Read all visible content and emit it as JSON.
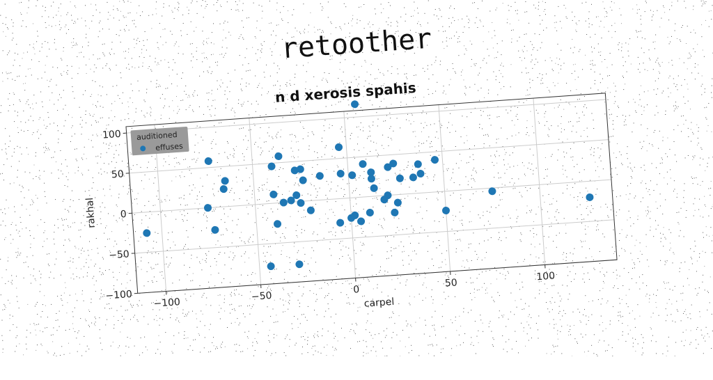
{
  "page": {
    "title": "retoother",
    "background": "#ffffff"
  },
  "chart_data": {
    "type": "scatter",
    "title": "n d xerosis spahis",
    "xlabel": "carpel",
    "ylabel": "rakhal",
    "xlim": [
      -115,
      138
    ],
    "ylim": [
      -100,
      108
    ],
    "xticks": [
      -100,
      -50,
      0,
      50,
      100
    ],
    "yticks": [
      -100,
      -50,
      0,
      50,
      100
    ],
    "xtick_labels": [
      "−100",
      "−50",
      "0",
      "50",
      "100"
    ],
    "ytick_labels": [
      "−100",
      "−50",
      "0",
      "50",
      "100"
    ],
    "grid": true,
    "legend": {
      "title": "auditioned",
      "placement": "top-left"
    },
    "series": [
      {
        "name": "effuses",
        "color": "#1f77b4",
        "x": [
          6,
          -73,
          -65,
          -66,
          -40,
          -36,
          -28,
          -25,
          -24,
          -15,
          -4,
          -4,
          2,
          8,
          12,
          21,
          24,
          37,
          46,
          34,
          -75,
          -40,
          -35,
          -31,
          -28,
          -26,
          -21,
          -6,
          0,
          5,
          10,
          13,
          20,
          18,
          25,
          12,
          38,
          -39,
          -108,
          -72,
          50,
          75,
          126,
          2,
          -44,
          -29,
          27,
          23
        ],
        "y": [
          116,
          58,
          32,
          22,
          46,
          58,
          39,
          40,
          26,
          30,
          64,
          31,
          28,
          41,
          22,
          35,
          39,
          36,
          40,
          20,
          0,
          11,
          0,
          2,
          8,
          -2,
          -12,
          -30,
          -25,
          -30,
          -20,
          10,
          0,
          -5,
          -10,
          30,
          24,
          -26,
          -26,
          -28,
          -24,
          -4,
          -20,
          -22,
          -78,
          -78,
          20,
          -22
        ]
      }
    ]
  }
}
